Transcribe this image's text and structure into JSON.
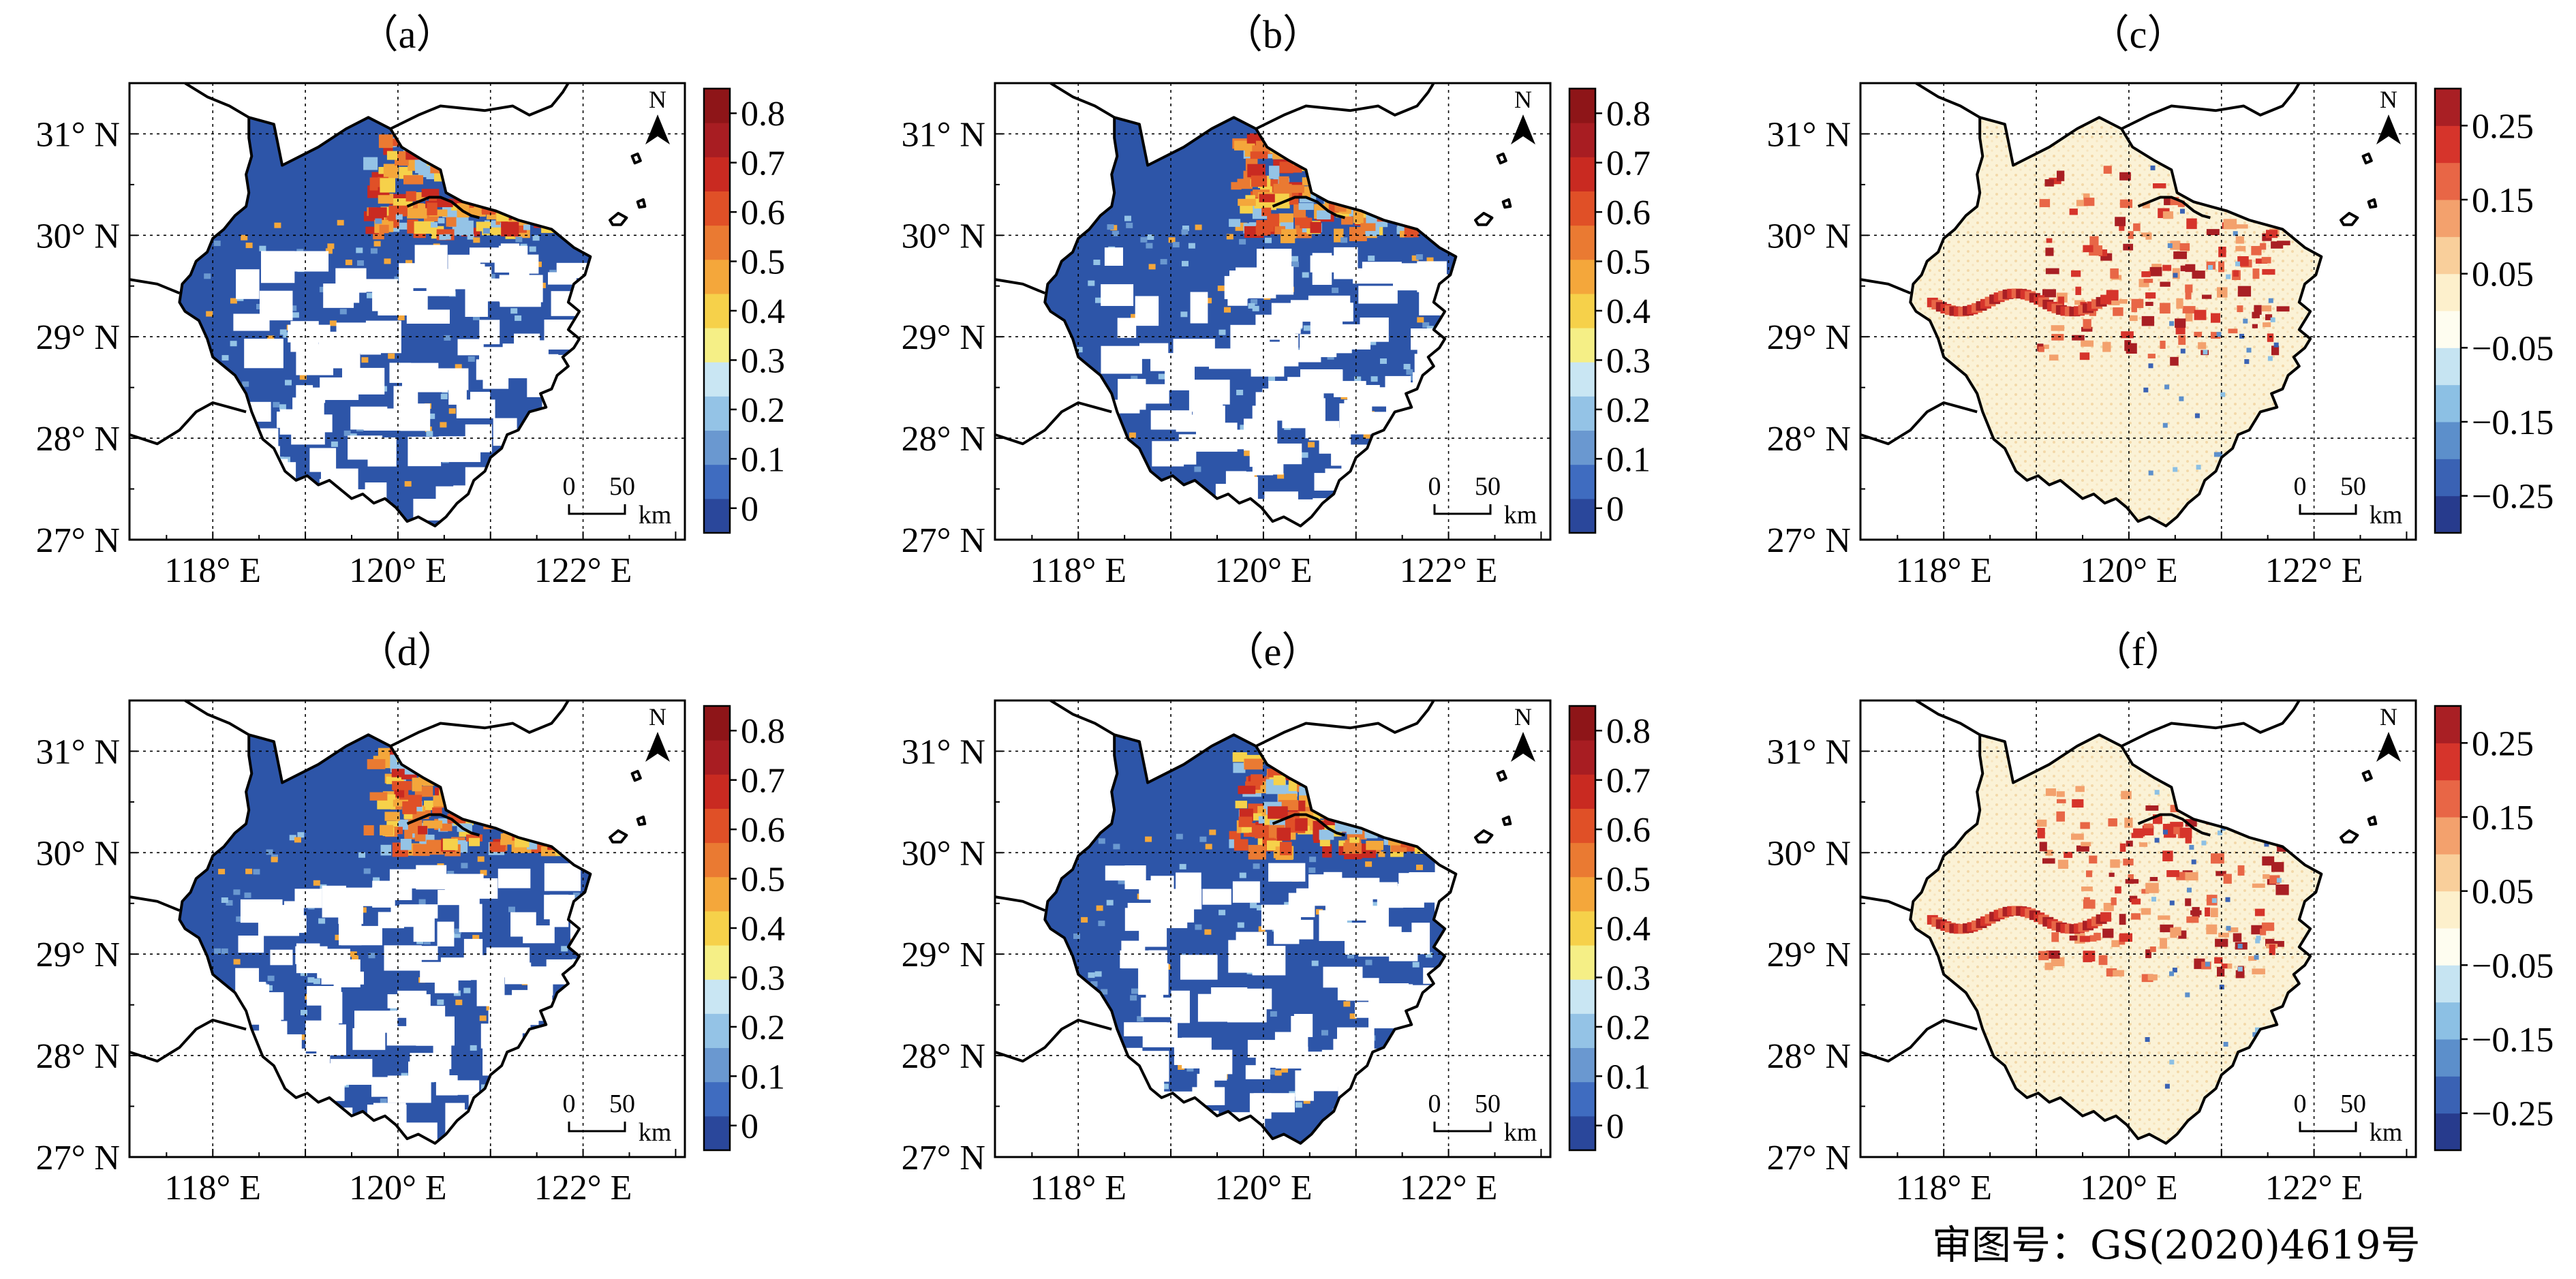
{
  "figure": {
    "panels": [
      {
        "id": "a",
        "label": "（a）",
        "scale": "abs"
      },
      {
        "id": "b",
        "label": "（b）",
        "scale": "abs"
      },
      {
        "id": "c",
        "label": "（c）",
        "scale": "diff"
      },
      {
        "id": "d",
        "label": "（d）",
        "scale": "abs"
      },
      {
        "id": "e",
        "label": "（e）",
        "scale": "abs"
      },
      {
        "id": "f",
        "label": "（f）",
        "scale": "diff"
      }
    ],
    "map_axes": {
      "lon_ticks": [
        "118° E",
        "120° E",
        "122° E"
      ],
      "lat_ticks": [
        "31° N",
        "30° N",
        "29° N",
        "28° N",
        "27° N"
      ],
      "lon_values": [
        118,
        120,
        122
      ],
      "lat_values": [
        31,
        30,
        29,
        28,
        27
      ],
      "lon_range": [
        117.1,
        123.1
      ],
      "lat_range": [
        27,
        31.5
      ],
      "grid": true
    },
    "north_arrow": {
      "label": "N"
    },
    "scale_bar": {
      "zero": "0",
      "fifty": "50",
      "unit": "km"
    },
    "colorbar_abs": {
      "labels": [
        "0.8",
        "0.7",
        "0.6",
        "0.5",
        "0.4",
        "0.3",
        "0.2",
        "0.1",
        "0"
      ],
      "values": [
        0.8,
        0.7,
        0.6,
        0.5,
        0.4,
        0.3,
        0.2,
        0.1,
        0
      ],
      "range": [
        -0.05,
        0.85
      ],
      "colors": [
        "#2a479b",
        "#3f6cc0",
        "#6a98d0",
        "#94c3e6",
        "#c9e6f3",
        "#f5ef86",
        "#f6d14a",
        "#f4a73b",
        "#ea7a32",
        "#e05027",
        "#c92a21",
        "#a81d22",
        "#8e1518"
      ]
    },
    "colorbar_diff": {
      "labels": [
        "0.25",
        "0.15",
        "0.05",
        "−0.05",
        "−0.15",
        "−0.25"
      ],
      "values": [
        0.25,
        0.15,
        0.05,
        -0.05,
        -0.15,
        -0.25
      ],
      "range": [
        -0.3,
        0.3
      ],
      "colors": [
        "#273b8d",
        "#3a62b4",
        "#5c8fcb",
        "#8cc0e4",
        "#c6e4f2",
        "#fefdf0",
        "#fdf0cc",
        "#f9cf9b",
        "#f3a16d",
        "#e86646",
        "#d6342b",
        "#a91f24"
      ]
    },
    "approval_number": "审图号：GS(2020)4619号"
  }
}
